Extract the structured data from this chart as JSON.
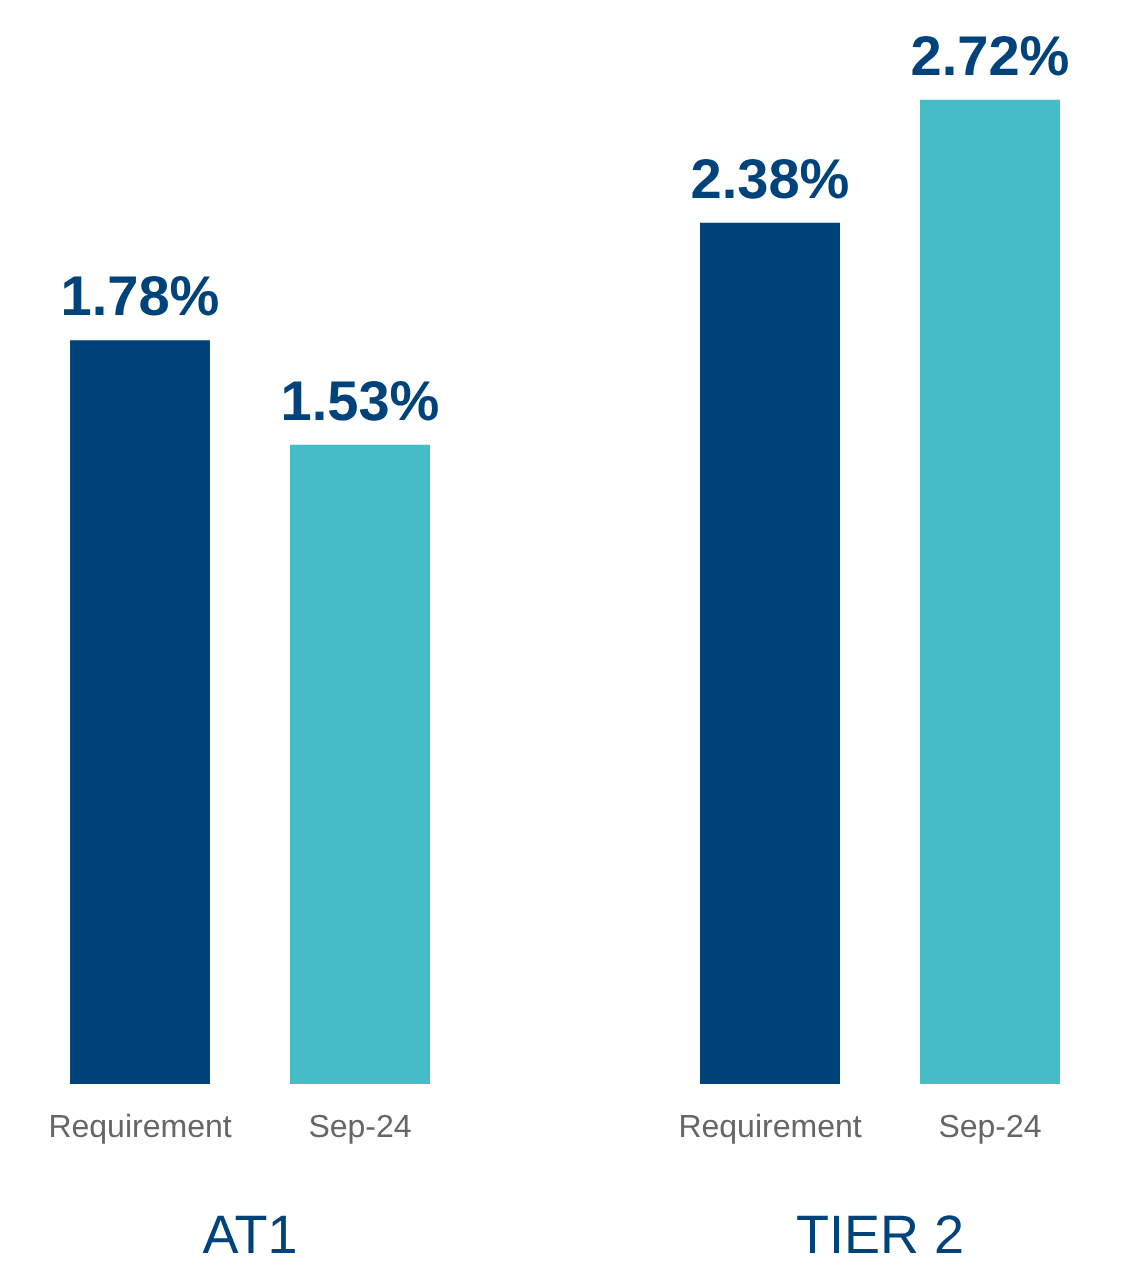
{
  "chart_data": [
    {
      "type": "bar",
      "categories": [
        "Requirement",
        "Sep-24"
      ],
      "values": [
        1.78,
        1.53
      ],
      "colors": [
        "#00427a",
        "#45bcc6"
      ],
      "value_labels": [
        "1.78%",
        "1.53%"
      ],
      "xlabel": "AT1"
    },
    {
      "type": "bar",
      "categories": [
        "Requirement",
        "Sep-24"
      ],
      "values": [
        2.38,
        2.72
      ],
      "colors": [
        "#00427a",
        "#45bcc6"
      ],
      "value_labels": [
        "2.38%",
        "2.72%"
      ],
      "xlabel": "TIER 2"
    }
  ]
}
